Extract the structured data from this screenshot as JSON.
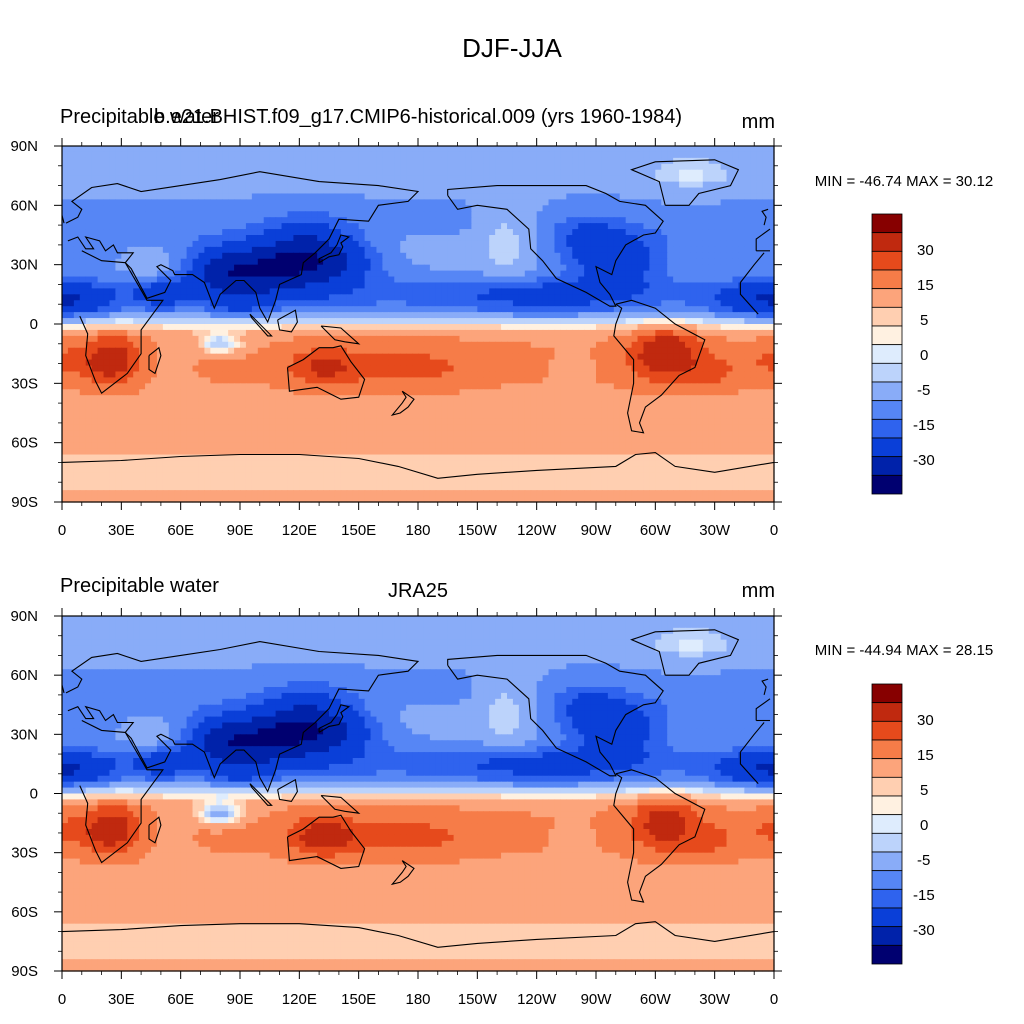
{
  "title": "DJF-JJA",
  "panels": [
    {
      "left_title": "Precipitable water",
      "center_title": "b.e21.BHIST.f09_g17.CMIP6-historical.009 (yrs 1960-1984)",
      "units": "mm",
      "minmax": "MIN = -46.74 MAX =  30.12",
      "colorbar_labels": [
        "30",
        "15",
        "5",
        "0",
        "-5",
        "-15",
        "-30"
      ]
    },
    {
      "left_title": "Precipitable water",
      "center_title": "JRA25",
      "units": "mm",
      "minmax": "MIN = -44.94 MAX =  28.15",
      "colorbar_labels": [
        "30",
        "15",
        "5",
        "0",
        "-5",
        "-15",
        "-30"
      ]
    }
  ],
  "chart_data": [
    {
      "type": "heatmap",
      "title": "DJF-JJA",
      "subtitle": "b.e21.BHIST.f09_g17.CMIP6-historical.009 (yrs 1960-1984)",
      "variable": "Precipitable water",
      "units": "mm",
      "min": -46.74,
      "max": 30.12,
      "x_ticks": [
        "0",
        "30E",
        "60E",
        "90E",
        "120E",
        "150E",
        "180",
        "150W",
        "120W",
        "90W",
        "60W",
        "30W",
        "0"
      ],
      "y_ticks": [
        "90N",
        "60N",
        "30N",
        "0",
        "30S",
        "60S",
        "90S"
      ],
      "xlim": [
        0,
        360
      ],
      "ylim": [
        -90,
        90
      ],
      "contour_levels": [
        -40,
        -30,
        -20,
        -15,
        -10,
        -5,
        -2,
        0,
        2,
        5,
        10,
        15,
        20,
        30
      ]
    },
    {
      "type": "heatmap",
      "title": "DJF-JJA",
      "subtitle": "JRA25",
      "variable": "Precipitable water",
      "units": "mm",
      "min": -44.94,
      "max": 28.15,
      "x_ticks": [
        "0",
        "30E",
        "60E",
        "90E",
        "120E",
        "150E",
        "180",
        "150W",
        "120W",
        "90W",
        "60W",
        "30W",
        "0"
      ],
      "y_ticks": [
        "90N",
        "60N",
        "30N",
        "0",
        "30S",
        "60S",
        "90S"
      ],
      "xlim": [
        0,
        360
      ],
      "ylim": [
        -90,
        90
      ],
      "contour_levels": [
        -40,
        -30,
        -20,
        -15,
        -10,
        -5,
        -2,
        0,
        2,
        5,
        10,
        15,
        20,
        30
      ]
    }
  ],
  "colors": {
    "levels": [
      "#000070",
      "#0022aa",
      "#0a3fd8",
      "#2f63ee",
      "#5686f5",
      "#89acf8",
      "#bcd3fb",
      "#deecfd",
      "#fff1e1",
      "#ffcfb1",
      "#fca47b",
      "#f67c48",
      "#e64a1c",
      "#c0290f",
      "#870000"
    ]
  }
}
